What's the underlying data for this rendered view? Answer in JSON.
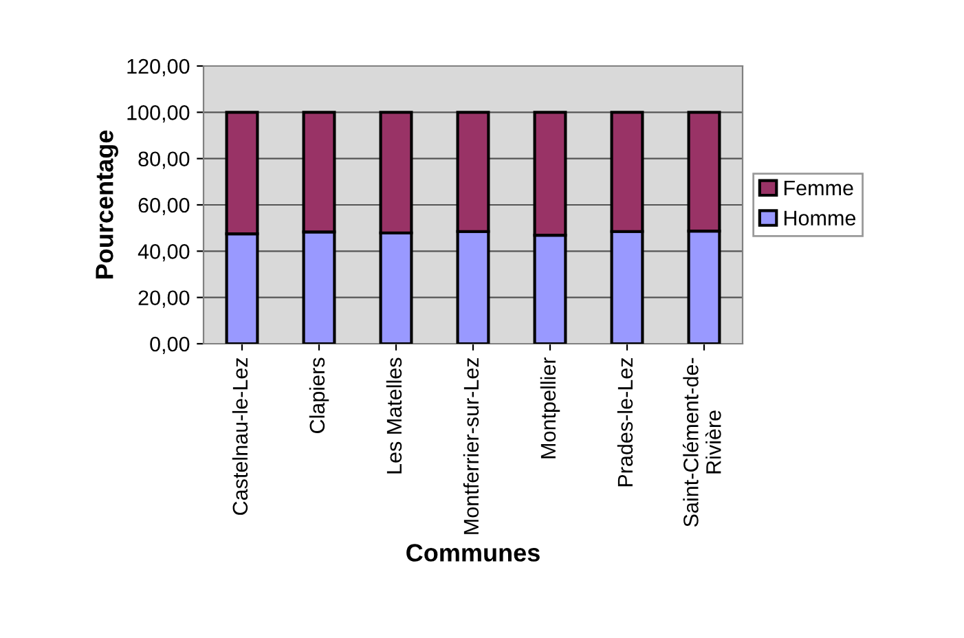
{
  "chart_data": {
    "type": "bar",
    "stacked": true,
    "xlabel": "Communes",
    "ylabel": "Pourcentage",
    "categories": [
      "Castelnau-le-Lez",
      "Clapiers",
      "Les Matelles",
      "Montferrier-sur-Lez",
      "Montpellier",
      "Prades-le-Lez",
      "Saint-Clément-de-\nRivière"
    ],
    "series": [
      {
        "name": "Homme",
        "color": "#9999ff",
        "values": [
          47.5,
          48.3,
          47.9,
          48.5,
          46.9,
          48.5,
          48.7
        ]
      },
      {
        "name": "Femme",
        "color": "#993366",
        "values": [
          52.5,
          51.7,
          52.1,
          51.5,
          53.1,
          51.5,
          51.3
        ]
      }
    ],
    "ylim": [
      0,
      120
    ],
    "yticks": [
      {
        "value": 0,
        "label": "0,00"
      },
      {
        "value": 20,
        "label": "20,00"
      },
      {
        "value": 40,
        "label": "40,00"
      },
      {
        "value": 60,
        "label": "60,00"
      },
      {
        "value": 80,
        "label": "80,00"
      },
      {
        "value": 100,
        "label": "100,00"
      },
      {
        "value": 120,
        "label": "120,00"
      }
    ],
    "grid": "y",
    "legend": "right"
  }
}
